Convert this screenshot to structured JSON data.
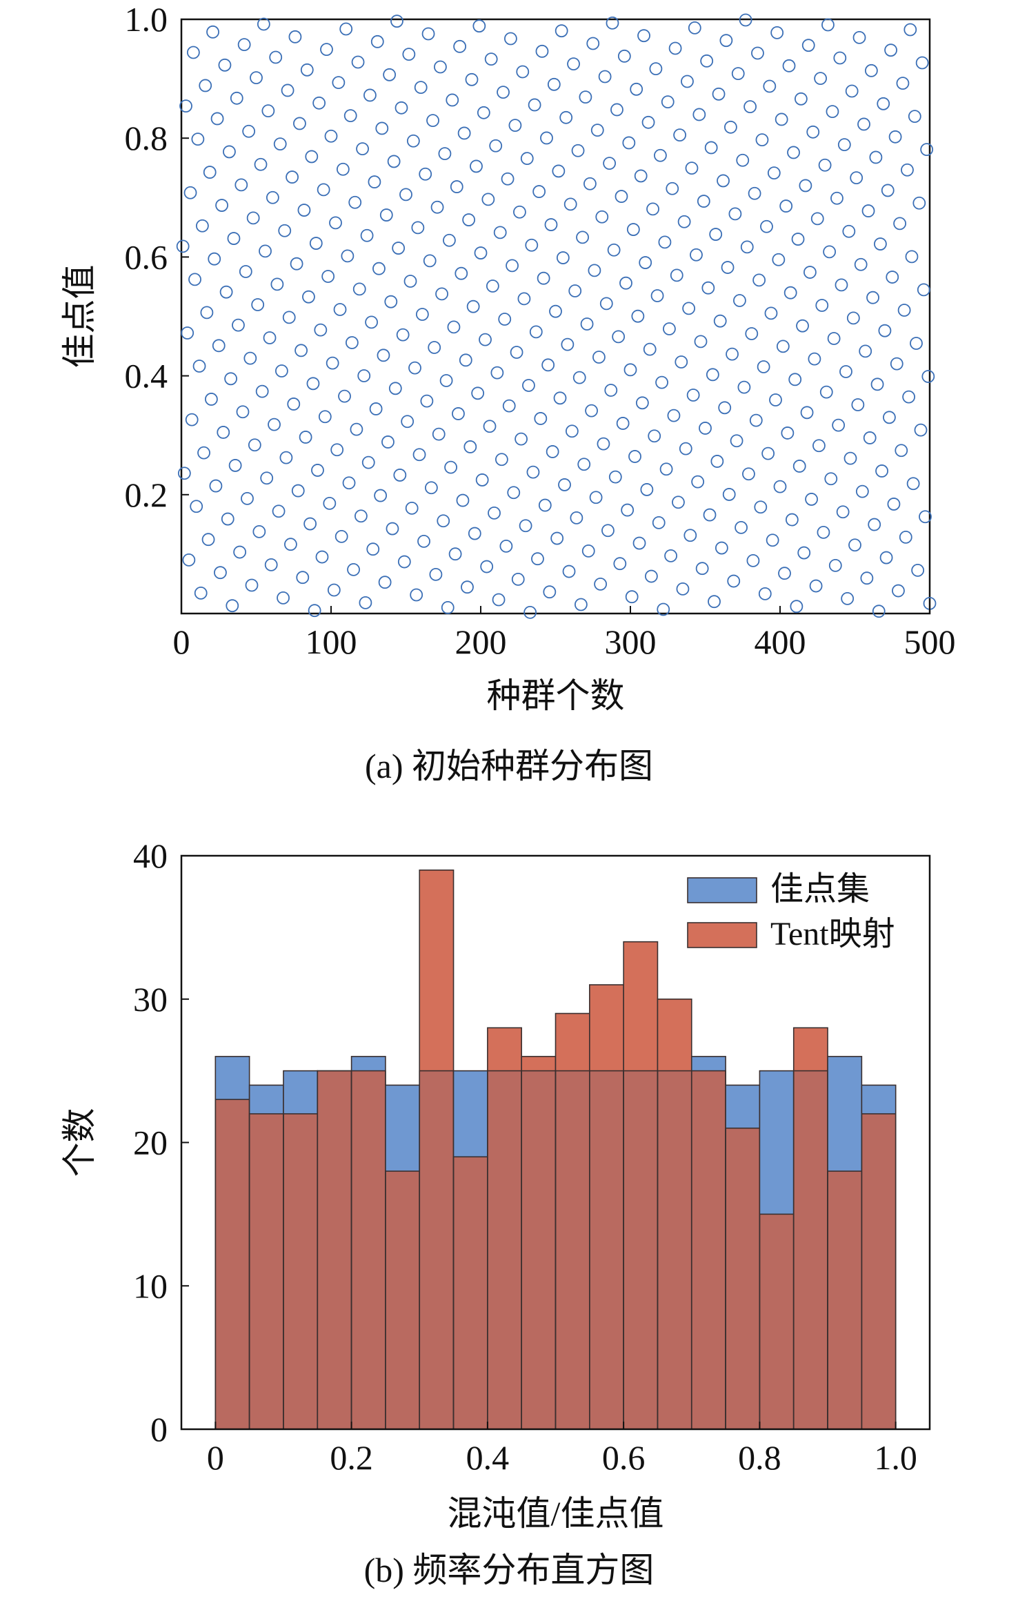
{
  "chart_data": [
    {
      "type": "scatter",
      "xlabel": "种群个数",
      "ylabel": "佳点值",
      "caption": "(a) 初始种群分布图",
      "xlim": [
        0,
        500
      ],
      "ylim": [
        0,
        1
      ],
      "xticks": [
        0,
        100,
        200,
        300,
        400,
        500
      ],
      "xtick_labels": [
        "0",
        "100",
        "200",
        "300",
        "400",
        "500"
      ],
      "yticks": [
        0.2,
        0.4,
        0.6,
        0.8,
        1.0
      ],
      "ytick_labels": [
        "0.2",
        "0.4",
        "0.6",
        "0.8",
        "1.0"
      ],
      "marker": "open-circle",
      "marker_color": "#3b6fb6",
      "points_note": "500 points, x = 1..500, y = frac(x * r) with r ≈ 0.6180 (golden point set)",
      "count": 500,
      "generator_r": 0.618034,
      "grid": false
    },
    {
      "type": "bar",
      "subtype": "overlaid-histogram",
      "xlabel": "混沌值/佳点值",
      "ylabel": "个数",
      "caption": "(b) 频率分布直方图",
      "xlim": [
        -0.05,
        1.05
      ],
      "ylim": [
        0,
        40
      ],
      "xticks": [
        0,
        0.2,
        0.4,
        0.6,
        0.8,
        1.0
      ],
      "xtick_labels": [
        "0",
        "0.2",
        "0.4",
        "0.6",
        "0.8",
        "1.0"
      ],
      "yticks": [
        0,
        10,
        20,
        30,
        40
      ],
      "ytick_labels": [
        "0",
        "10",
        "20",
        "30",
        "40"
      ],
      "bin_edges": [
        0,
        0.05,
        0.1,
        0.15,
        0.2,
        0.25,
        0.3,
        0.35,
        0.4,
        0.45,
        0.5,
        0.55,
        0.6,
        0.65,
        0.7,
        0.75,
        0.8,
        0.85,
        0.9,
        0.95,
        1.0
      ],
      "series": [
        {
          "name": "佳点集",
          "color": "#6f98d1",
          "values": [
            26,
            24,
            25,
            25,
            26,
            24,
            25,
            25,
            25,
            25,
            25,
            25,
            25,
            25,
            26,
            24,
            25,
            25,
            26,
            24
          ]
        },
        {
          "name": "Tent映射",
          "color": "#d4705a",
          "values": [
            23,
            22,
            22,
            25,
            25,
            18,
            39,
            19,
            28,
            26,
            29,
            31,
            34,
            30,
            25,
            21,
            15,
            28,
            18,
            22
          ]
        }
      ],
      "overlap_color": "#b96a60",
      "legend_position": "top-right",
      "grid": false
    }
  ]
}
